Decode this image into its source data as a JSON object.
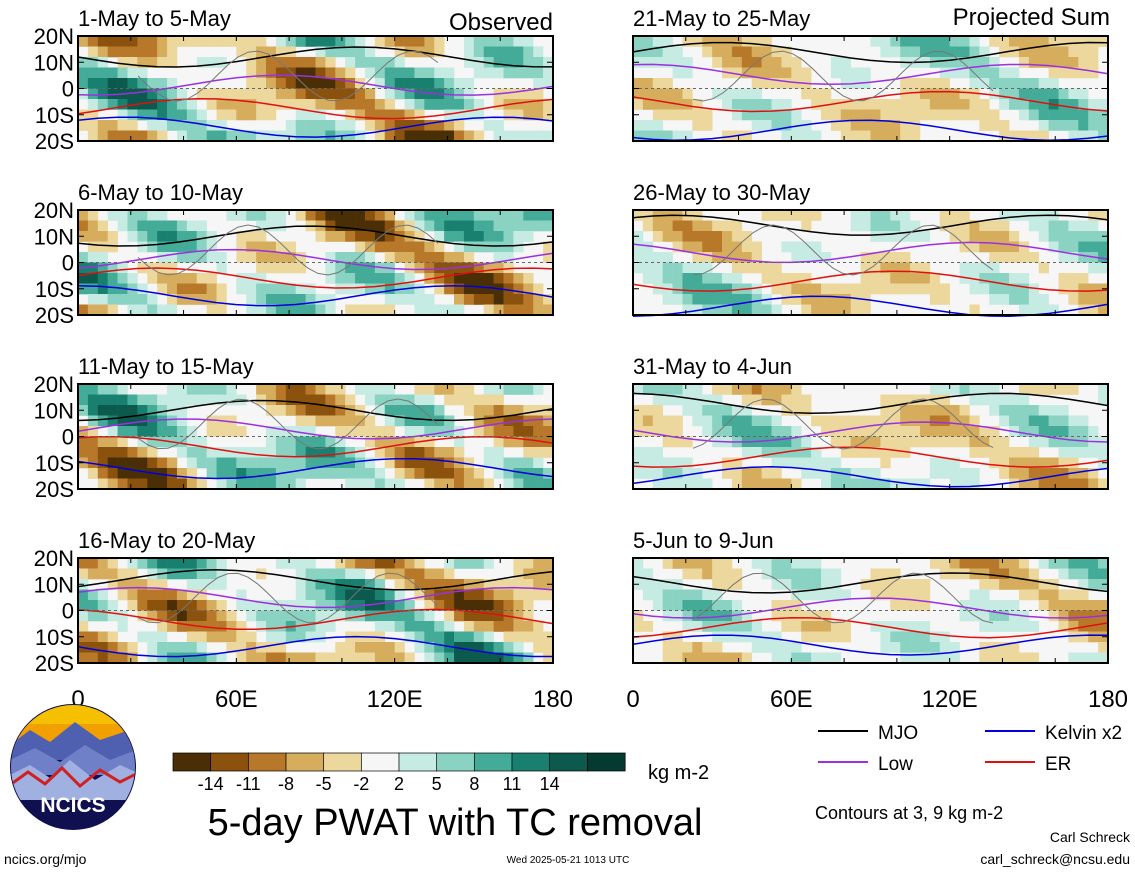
{
  "title": "5-day PWAT with TC removal",
  "units_label": "kg m-2",
  "contour_note": "Contours at 3, 9 kg m-2",
  "author": "Carl Schreck",
  "email": "carl_schreck@ncsu.edu",
  "website": "ncics.org/mjo",
  "timestamp": "Wed 2025-05-21 1013 UTC",
  "logo_text": "NCICS",
  "column_labels": [
    "Observed",
    "Projected Sum"
  ],
  "chart_data": {
    "type": "heatmap",
    "x_ticks": [
      "0",
      "60E",
      "120E",
      "180"
    ],
    "y_ticks": [
      "20N",
      "10N",
      "0",
      "10S",
      "20S"
    ],
    "xlim": [
      0,
      180
    ],
    "ylim": [
      -20,
      20
    ],
    "panels": [
      {
        "label": "1-May to 5-May",
        "kind": "Observed",
        "col": 0,
        "row": 0
      },
      {
        "label": "6-May to 10-May",
        "kind": "Observed",
        "col": 0,
        "row": 1
      },
      {
        "label": "11-May to 15-May",
        "kind": "Observed",
        "col": 0,
        "row": 2
      },
      {
        "label": "16-May to 20-May",
        "kind": "Observed",
        "col": 0,
        "row": 3
      },
      {
        "label": "21-May to 25-May",
        "kind": "Projected Sum",
        "col": 1,
        "row": 0
      },
      {
        "label": "26-May to 30-May",
        "kind": "Projected Sum",
        "col": 1,
        "row": 1
      },
      {
        "label": "31-May to 4-Jun",
        "kind": "Projected Sum",
        "col": 1,
        "row": 2
      },
      {
        "label": "5-Jun to 9-Jun",
        "kind": "Projected Sum",
        "col": 1,
        "row": 3
      }
    ],
    "colorbar": {
      "ticks": [
        "-14",
        "-11",
        "-8",
        "-5",
        "-2",
        "2",
        "5",
        "8",
        "11",
        "14"
      ],
      "colors": [
        "#4a2f06",
        "#8a520d",
        "#b8782a",
        "#d5ad5c",
        "#ecd79d",
        "#f6f6f6",
        "#c6ebe3",
        "#8ad3c3",
        "#44ab98",
        "#19806f",
        "#0c5a4d",
        "#053a31"
      ]
    },
    "legend": [
      {
        "name": "MJO",
        "color": "#000000"
      },
      {
        "name": "Kelvin x2",
        "color": "#0000dd"
      },
      {
        "name": "Low",
        "color": "#9b30e0"
      },
      {
        "name": "ER",
        "color": "#e01010"
      }
    ]
  }
}
